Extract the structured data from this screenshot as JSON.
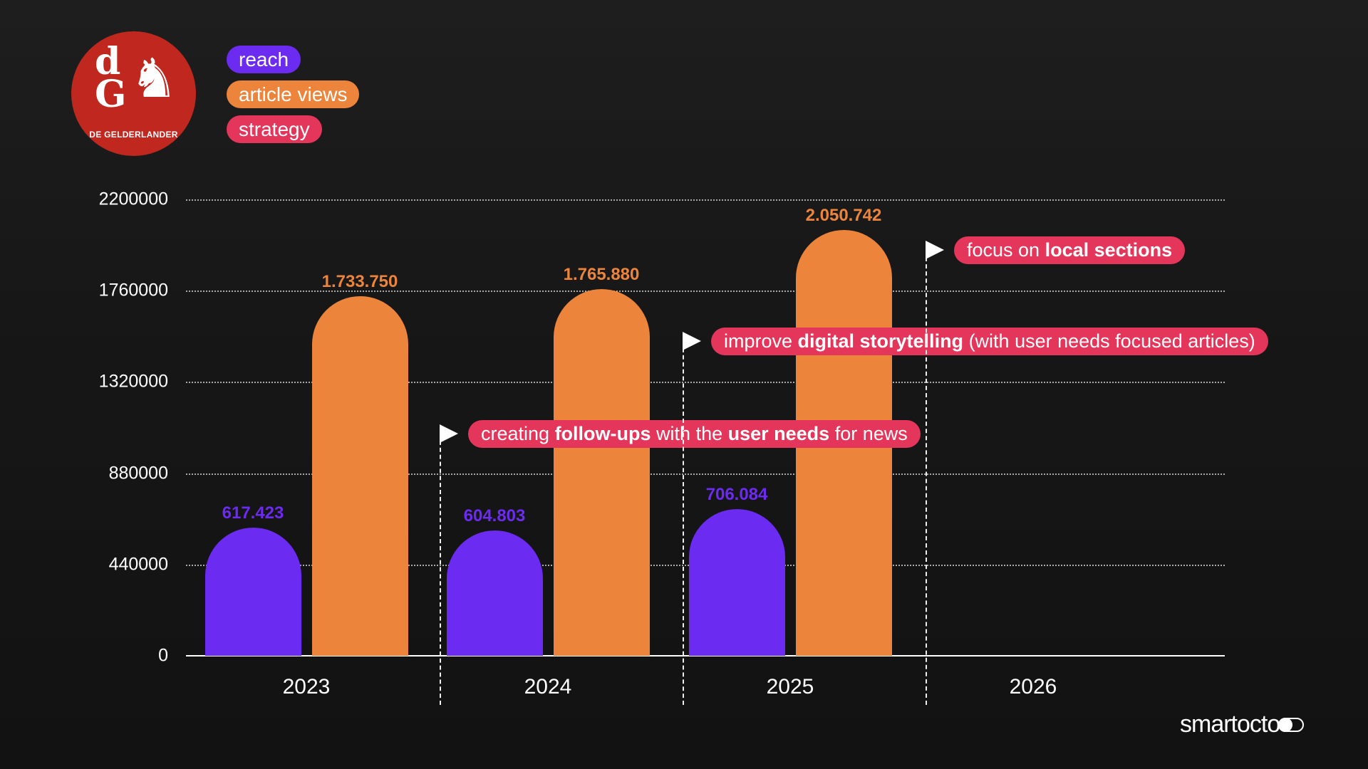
{
  "logo": {
    "letters": "dG",
    "name": "DE GELDERLANDER"
  },
  "legend": [
    {
      "label": "reach",
      "color": "#6b2bf0"
    },
    {
      "label": "article views",
      "color": "#ec843c"
    },
    {
      "label": "strategy",
      "color": "#e4355a"
    }
  ],
  "chart_data": {
    "type": "bar",
    "categories": [
      "2023",
      "2024",
      "2025",
      "2026"
    ],
    "series": [
      {
        "name": "reach",
        "color": "#6b2bf0",
        "values": [
          617423,
          604803,
          706084,
          null
        ],
        "labels": [
          "617.423",
          "604.803",
          "706.084",
          ""
        ]
      },
      {
        "name": "article views",
        "color": "#ec843c",
        "values": [
          1733750,
          1765880,
          2050742,
          null
        ],
        "labels": [
          "1.733.750",
          "1.765.880",
          "2.050.742",
          ""
        ]
      }
    ],
    "yticks": [
      "0",
      "440000",
      "880000",
      "1320000",
      "1760000",
      "2200000"
    ],
    "ylim": [
      0,
      2200000
    ],
    "grid": true,
    "annotations": [
      {
        "between": [
          "2023",
          "2024"
        ],
        "parts": [
          [
            "creating ",
            false
          ],
          [
            "follow-ups",
            true
          ],
          [
            " with the ",
            false
          ],
          [
            "user needs",
            true
          ],
          [
            " for news",
            false
          ]
        ]
      },
      {
        "between": [
          "2024",
          "2025"
        ],
        "parts": [
          [
            "improve ",
            false
          ],
          [
            "digital storytelling",
            true
          ],
          [
            " (with user needs focused articles)",
            false
          ]
        ]
      },
      {
        "between": [
          "2025",
          "2026"
        ],
        "parts": [
          [
            "focus on ",
            false
          ],
          [
            "local sections",
            true
          ]
        ]
      }
    ]
  },
  "brand": "smartocto"
}
